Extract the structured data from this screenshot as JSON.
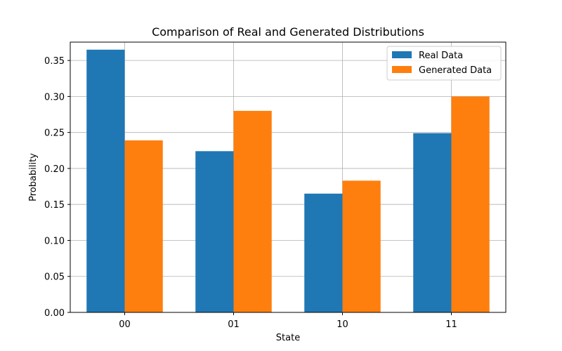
{
  "chart_data": {
    "type": "bar",
    "title": "Comparison of Real and Generated Distributions",
    "xlabel": "State",
    "ylabel": "Probability",
    "categories": [
      "00",
      "01",
      "10",
      "11"
    ],
    "series": [
      {
        "name": "Real Data",
        "values": [
          0.365,
          0.224,
          0.165,
          0.249
        ],
        "color": "#1f77b4"
      },
      {
        "name": "Generated Data",
        "values": [
          0.239,
          0.28,
          0.183,
          0.3
        ],
        "color": "#ff7f0e"
      }
    ],
    "ylim": [
      0,
      0.3755
    ],
    "yticks": [
      0.0,
      0.05,
      0.1,
      0.15,
      0.2,
      0.25,
      0.3,
      0.35
    ],
    "ytick_labels": [
      "0.00",
      "0.05",
      "0.10",
      "0.15",
      "0.20",
      "0.25",
      "0.30",
      "0.35"
    ],
    "grid": true,
    "legend_position": "top-right"
  }
}
